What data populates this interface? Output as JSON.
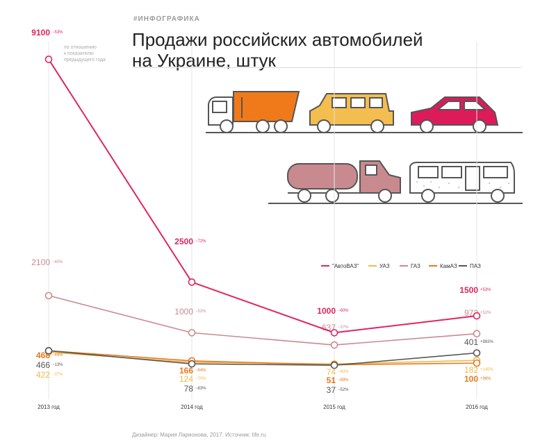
{
  "header": {
    "tag": "#ИНФОГРАФИКА",
    "title": "Продажи российских автомобилей на Украине, штук"
  },
  "footer": "Дизайнер: Мария Ларионова, 2017. Источник: life.ru.",
  "note": "по отношению к показателю предыдущего года",
  "colors": {
    "avtovaz": "#e0245e",
    "uaz": "#f2b84b",
    "gaz": "#c98a8f",
    "kamaz": "#e8781a",
    "paz": "#555555"
  },
  "chart_data": {
    "type": "line",
    "categories": [
      "2013 год",
      "2014 год",
      "2015 год",
      "2016 год"
    ],
    "ylim": [
      0,
      9500
    ],
    "legend_position": "right",
    "series": [
      {
        "key": "avtovaz",
        "name": "\"АвтоВАЗ\"",
        "values": [
          9100,
          2500,
          1000,
          1500
        ],
        "changes": [
          "−53%",
          "−72%",
          "−60%",
          "+53%"
        ]
      },
      {
        "key": "uaz",
        "name": "УАЗ",
        "values": [
          422,
          124,
          74,
          182
        ],
        "changes": [
          "−37%",
          "−70%",
          "−40%",
          "+145%"
        ]
      },
      {
        "key": "gaz",
        "name": "ГАЗ",
        "values": [
          2100,
          1000,
          637,
          972
        ],
        "changes": [
          "−40%",
          "−52%",
          "−37%",
          "+52%"
        ]
      },
      {
        "key": "kamaz",
        "name": "КамАЗ",
        "values": [
          468,
          166,
          51,
          100
        ],
        "changes": [
          "−49%",
          "−64%",
          "−69%",
          "+96%"
        ]
      },
      {
        "key": "paz",
        "name": "ПАЗ",
        "values": [
          466,
          78,
          37,
          401
        ],
        "changes": [
          "−13%",
          "−83%",
          "−52%",
          "+983%"
        ]
      }
    ]
  }
}
